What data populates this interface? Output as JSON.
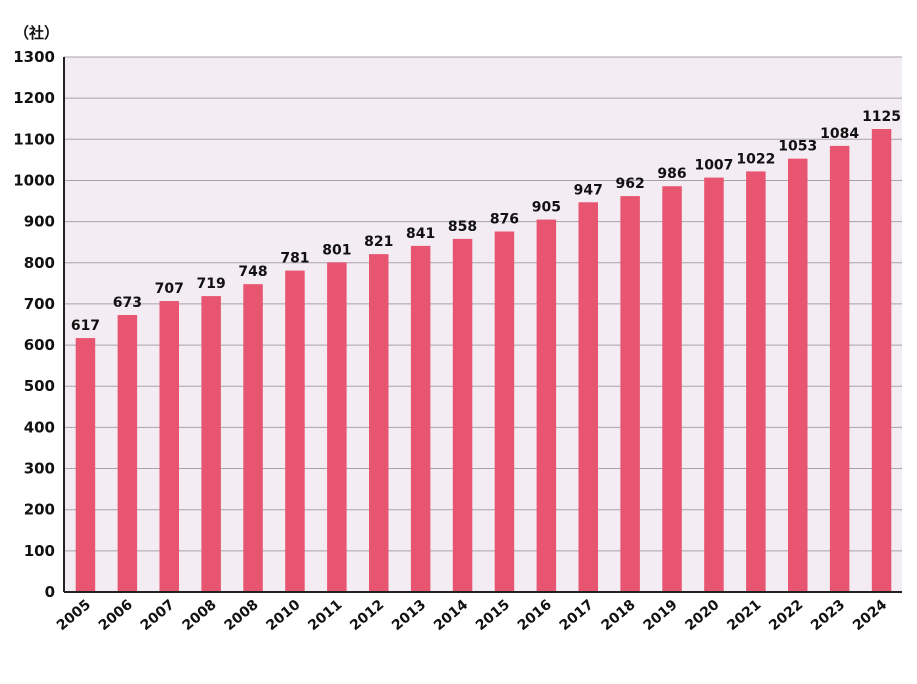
{
  "chart_data": {
    "type": "bar",
    "unit_label": "（社）",
    "categories": [
      "2005",
      "2006",
      "2007",
      "2008",
      "2008",
      "2010",
      "2011",
      "2012",
      "2013",
      "2014",
      "2015",
      "2016",
      "2017",
      "2018",
      "2019",
      "2020",
      "2021",
      "2022",
      "2023",
      "2024"
    ],
    "values": [
      617,
      673,
      707,
      719,
      748,
      781,
      801,
      821,
      841,
      858,
      876,
      905,
      947,
      962,
      986,
      1007,
      1022,
      1053,
      1084,
      1125
    ],
    "ylim": [
      0,
      1300
    ],
    "yticks": [
      0,
      100,
      200,
      300,
      400,
      500,
      600,
      700,
      800,
      900,
      1000,
      1100,
      1200,
      1300
    ],
    "grid": true,
    "colors": {
      "bar": "#e85570",
      "plot_bg": "#f3ecf3",
      "grid": "#a9a3a9",
      "axis": "#222222"
    }
  }
}
